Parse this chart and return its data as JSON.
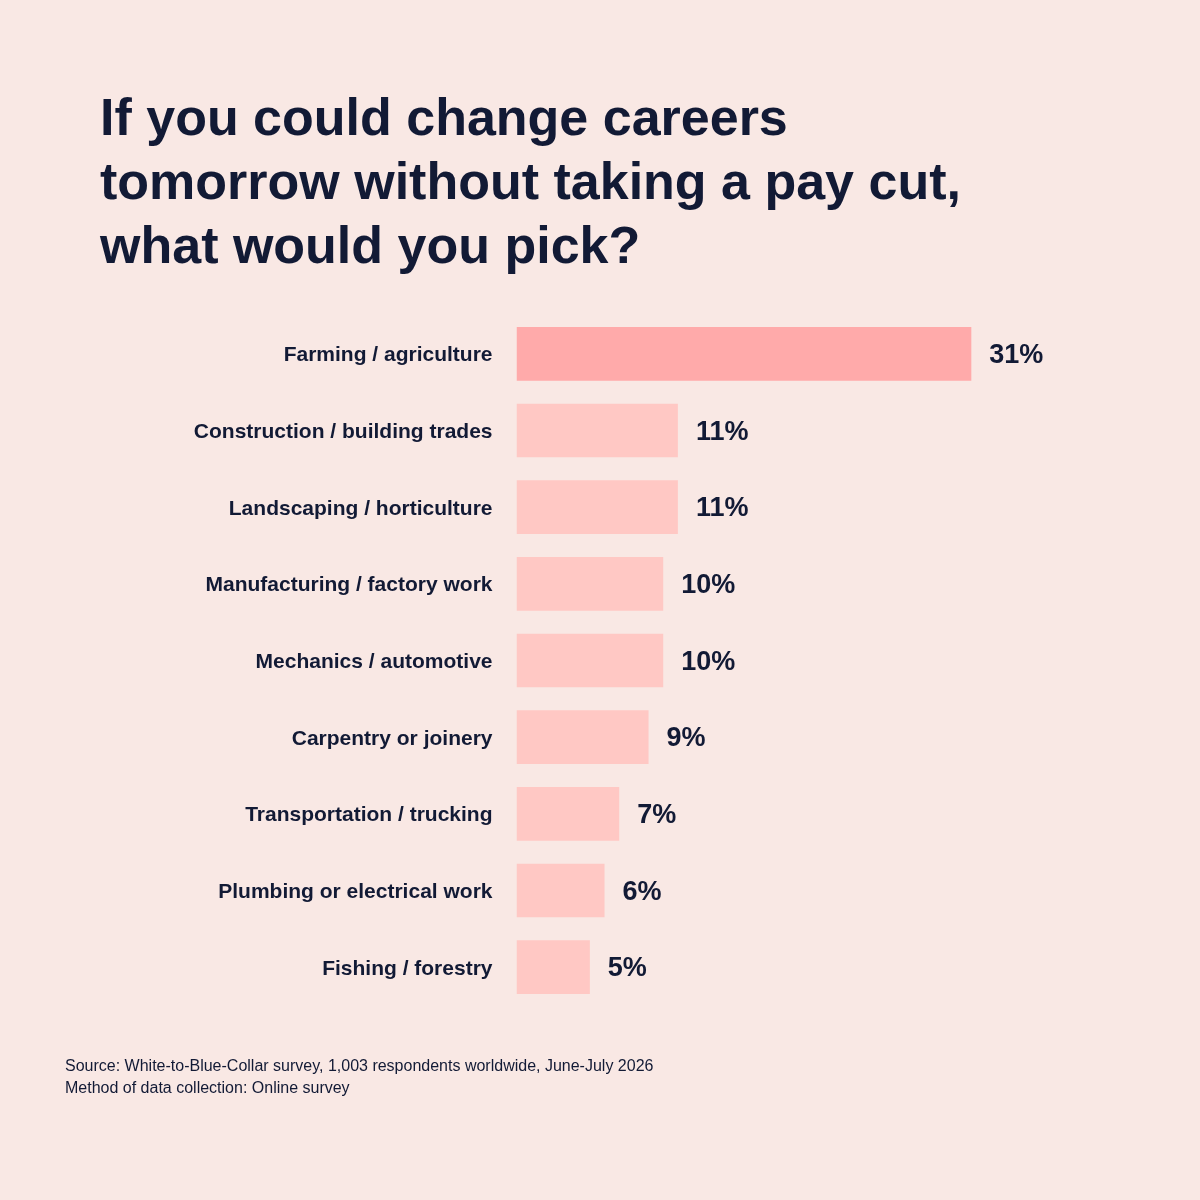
{
  "chart_data": {
    "type": "bar",
    "orientation": "horizontal",
    "title": "If you could change careers tomorrow without taking a pay cut, what would you pick?",
    "categories": [
      "Farming / agriculture",
      "Construction / building trades",
      "Landscaping / horticulture",
      "Manufacturing / factory work",
      "Mechanics / automotive",
      "Carpentry or joinery",
      "Transportation / trucking",
      "Plumbing or electrical work",
      "Fishing / forestry"
    ],
    "values": [
      31,
      11,
      11,
      10,
      10,
      9,
      7,
      6,
      5
    ],
    "value_labels": [
      "31%",
      "11%",
      "11%",
      "10%",
      "10%",
      "9%",
      "7%",
      "6%",
      "5%"
    ],
    "colors": [
      "#ffaaaa",
      "#ffc8c4",
      "#ffc8c4",
      "#ffc8c4",
      "#ffc8c4",
      "#ffc8c4",
      "#ffc8c4",
      "#ffc8c4",
      "#ffc8c4"
    ],
    "grid": false,
    "legend": false,
    "annotations": [
      "Source: White-to-Blue-Collar survey, 1,003 respondents worldwide, June-July 2026",
      "Method of data collection: Online survey"
    ]
  }
}
